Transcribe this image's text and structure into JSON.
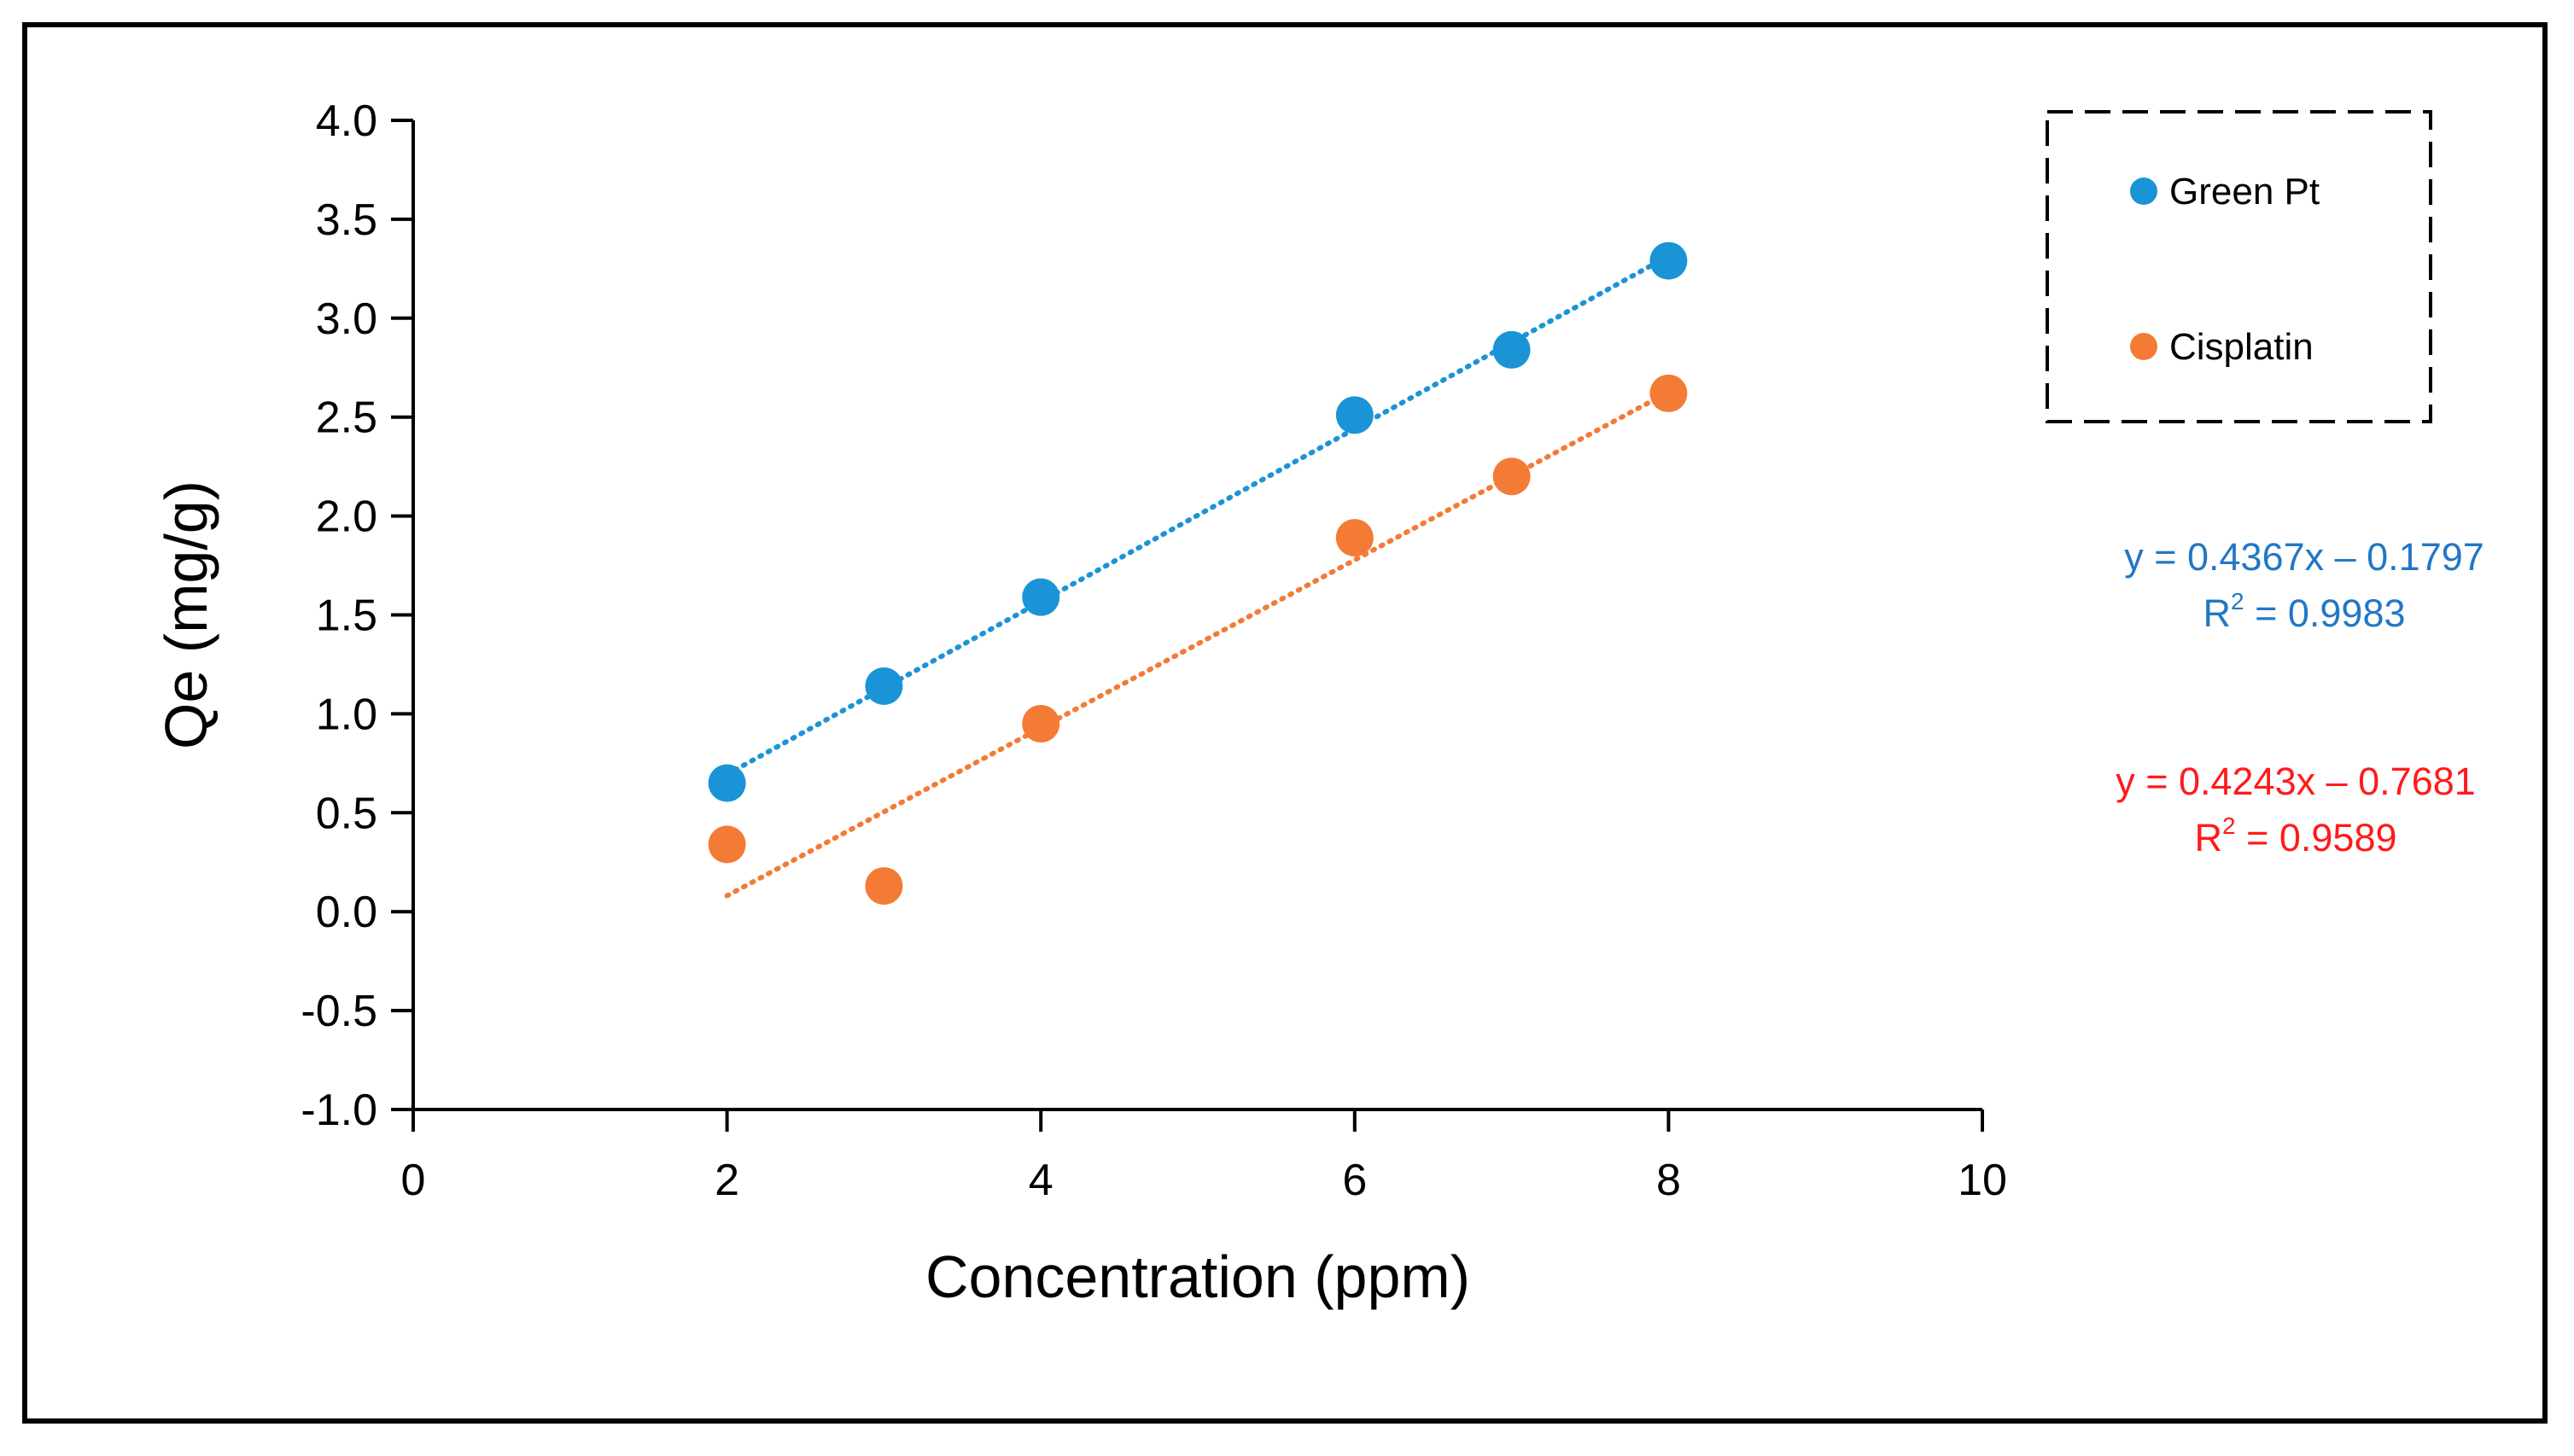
{
  "chart_data": {
    "type": "scatter",
    "title": "",
    "xlabel": "Concentration (ppm)",
    "ylabel": "Qe (mg/g)",
    "xlim": [
      0,
      10
    ],
    "ylim": [
      -1.0,
      4.0
    ],
    "xticks": [
      0,
      2,
      4,
      6,
      8,
      10
    ],
    "yticks": [
      -1.0,
      -0.5,
      0.0,
      0.5,
      1.0,
      1.5,
      2.0,
      2.5,
      3.0,
      3.5,
      4.0
    ],
    "xtick_labels": [
      "0",
      "2",
      "4",
      "6",
      "8",
      "10"
    ],
    "ytick_labels": [
      "-1.0",
      "-0.5",
      "0.0",
      "0.5",
      "1.0",
      "1.5",
      "2.0",
      "2.5",
      "3.0",
      "3.5",
      "4.0"
    ],
    "grid": false,
    "legend_position": "top-right",
    "series": [
      {
        "name": "Green Pt",
        "color": "#1A94D6",
        "x": [
          2,
          3,
          4,
          6,
          7,
          8
        ],
        "y": [
          0.65,
          1.14,
          1.59,
          2.51,
          2.84,
          3.29
        ],
        "trendline": {
          "slope": 0.4367,
          "intercept": -0.1797,
          "x_range": [
            2,
            8
          ],
          "style": "dotted",
          "equation": "y = 0.4367x – 0.1797",
          "r2_prefix": "R",
          "r2_exp": "2",
          "r2_value": " = 0.9983",
          "label_color": "#2277C4"
        }
      },
      {
        "name": "Cisplatin",
        "color": "#F47B35",
        "x": [
          2,
          3,
          4,
          6,
          7,
          8
        ],
        "y": [
          0.34,
          0.13,
          0.95,
          1.89,
          2.2,
          2.62
        ],
        "trendline": {
          "slope": 0.4243,
          "intercept": -0.7681,
          "x_range": [
            2,
            8
          ],
          "style": "dotted",
          "equation": "y = 0.4243x – 0.7681",
          "r2_prefix": "R",
          "r2_exp": "2",
          "r2_value": " = 0.9589",
          "label_color": "#FF1A1A"
        }
      }
    ]
  }
}
